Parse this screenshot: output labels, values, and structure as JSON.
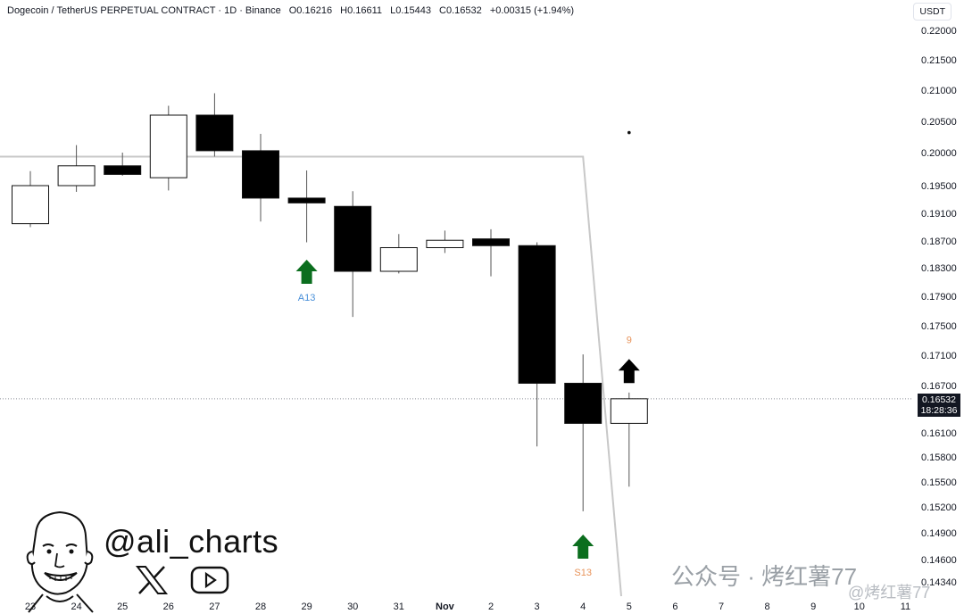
{
  "header": {
    "symbol": "Dogecoin / TetherUS PERPETUAL CONTRACT · 1D · Binance",
    "open": "O0.16216",
    "high": "H0.16611",
    "low": "L0.15443",
    "close": "C0.16532",
    "change": "+0.00315 (+1.94%)"
  },
  "currency_button": "USDT",
  "last_price": {
    "value": "0.16532",
    "countdown": "18:28:36"
  },
  "brand": {
    "handle": "@ali_charts",
    "x_icon": "x-logo-icon",
    "youtube_icon": "youtube-icon"
  },
  "watermark": {
    "text": "公众号 · 烤红薯77",
    "text2": "@烤红薯77"
  },
  "colors": {
    "up": "#ffffff",
    "down": "#000000",
    "arrow_green": "#0b6e1e",
    "label_blue": "#4a90d9",
    "label_orange": "#e8935a",
    "level_line": "#c8c8c8"
  },
  "chart_data": {
    "type": "candlestick",
    "y_ticks": [
      "0.22000",
      "0.21500",
      "0.21000",
      "0.20500",
      "0.20000",
      "0.19500",
      "0.19100",
      "0.18700",
      "0.18300",
      "0.17900",
      "0.17500",
      "0.17100",
      "0.16700",
      "0.16100",
      "0.15800",
      "0.15500",
      "0.15200",
      "0.14900",
      "0.14600",
      "0.14340"
    ],
    "x_labels": [
      "23",
      "24",
      "25",
      "26",
      "27",
      "28",
      "29",
      "30",
      "31",
      "Nov",
      "2",
      "3",
      "4",
      "5",
      "6",
      "7",
      "8",
      "9",
      "10",
      "11"
    ],
    "candles": [
      {
        "date": "23",
        "open": 0.1895,
        "high": 0.1972,
        "low": 0.189,
        "close": 0.195
      },
      {
        "date": "24",
        "open": 0.195,
        "high": 0.2012,
        "low": 0.1941,
        "close": 0.198
      },
      {
        "date": "25",
        "open": 0.198,
        "high": 0.2,
        "low": 0.1965,
        "close": 0.1967
      },
      {
        "date": "26",
        "open": 0.1962,
        "high": 0.2075,
        "low": 0.1943,
        "close": 0.206
      },
      {
        "date": "27",
        "open": 0.206,
        "high": 0.2095,
        "low": 0.1994,
        "close": 0.2003
      },
      {
        "date": "28",
        "open": 0.2003,
        "high": 0.203,
        "low": 0.1898,
        "close": 0.1932
      },
      {
        "date": "29",
        "open": 0.1932,
        "high": 0.1973,
        "low": 0.1868,
        "close": 0.1925
      },
      {
        "date": "30",
        "open": 0.192,
        "high": 0.1942,
        "low": 0.1762,
        "close": 0.1825
      },
      {
        "date": "31",
        "open": 0.1825,
        "high": 0.188,
        "low": 0.1822,
        "close": 0.186
      },
      {
        "date": "Nov",
        "open": 0.186,
        "high": 0.1885,
        "low": 0.1852,
        "close": 0.1871
      },
      {
        "date": "2",
        "open": 0.1873,
        "high": 0.1887,
        "low": 0.1818,
        "close": 0.1863
      },
      {
        "date": "3",
        "open": 0.1863,
        "high": 0.1868,
        "low": 0.1593,
        "close": 0.1673
      },
      {
        "date": "4",
        "open": 0.1673,
        "high": 0.1711,
        "low": 0.1515,
        "close": 0.1622
      },
      {
        "date": "5",
        "open": 0.1622,
        "high": 0.16611,
        "low": 0.15443,
        "close": 0.16532
      }
    ],
    "current_price": 0.16532,
    "signals": [
      {
        "date": "29",
        "type": "buy-arrow",
        "color": "green",
        "label": "A13",
        "label_color": "blue",
        "price": 0.1842
      },
      {
        "date": "4",
        "type": "buy-arrow",
        "color": "green",
        "label": "S13",
        "label_color": "orange",
        "price": 0.1488
      },
      {
        "date": "5",
        "type": "buy-arrow",
        "color": "black",
        "label": "9",
        "label_color": "orange",
        "price": 0.1705
      }
    ],
    "level_line": {
      "price": 0.1994,
      "from": "23",
      "to": "4"
    },
    "dot": {
      "date": "5",
      "price": 0.2032
    }
  }
}
